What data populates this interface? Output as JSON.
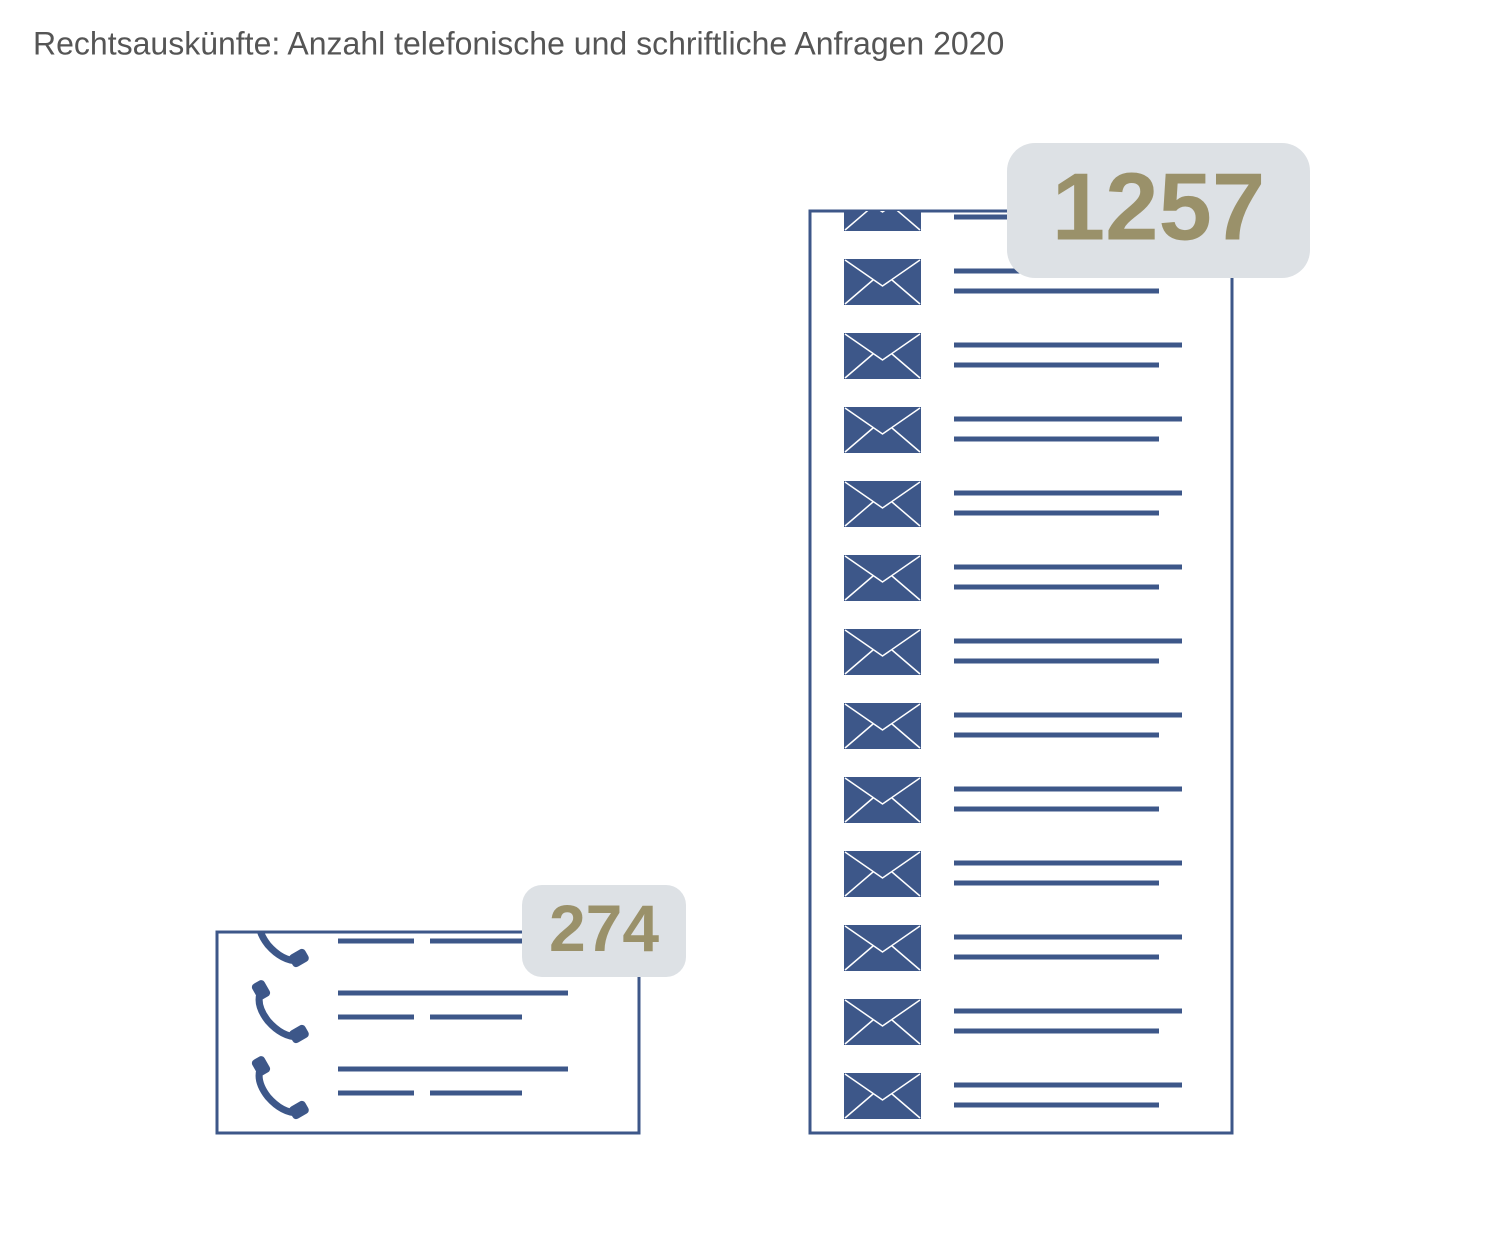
{
  "chart_data": {
    "type": "bar",
    "title": "Rechtsauskünfte: Anzahl telefonische und schriftliche Anfragen 2020",
    "values": [
      274,
      1257
    ],
    "color": "#3d5789",
    "label_color": "#9a916a",
    "badge_color": "#dde1e5"
  }
}
